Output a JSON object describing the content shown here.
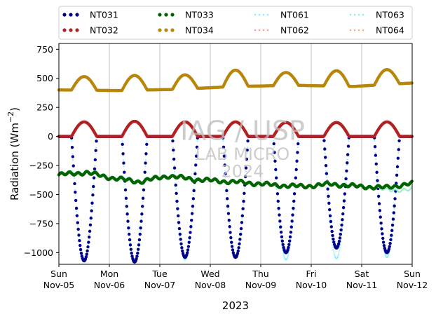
{
  "chart_data": {
    "type": "scatter",
    "ylabel": "Radiation (Wm⁻²)",
    "xlabel": "2023",
    "ylim": [
      -1100,
      800
    ],
    "xlim": [
      0,
      7
    ],
    "yticks": [
      750,
      500,
      250,
      0,
      -250,
      -500,
      -750,
      -1000
    ],
    "xticks": [
      {
        "x": 0,
        "day": "Sun",
        "date": "Nov-05"
      },
      {
        "x": 1,
        "day": "Mon",
        "date": "Nov-06"
      },
      {
        "x": 2,
        "day": "Tue",
        "date": "Nov-07"
      },
      {
        "x": 3,
        "day": "Wed",
        "date": "Nov-08"
      },
      {
        "x": 4,
        "day": "Thu",
        "date": "Nov-09"
      },
      {
        "x": 5,
        "day": "Fri",
        "date": "Nov-10"
      },
      {
        "x": 6,
        "day": "Sat",
        "date": "Nov-11"
      },
      {
        "x": 7,
        "day": "Sun",
        "date": "Nov-12"
      }
    ],
    "grid": "vertical",
    "legend_placement": "top, outside",
    "watermark": [
      "IAG / USP",
      "LAB MICRO",
      "2024"
    ],
    "series": [
      {
        "name": "NT031",
        "color": "#00008b",
        "style": "dots",
        "base": 0,
        "peaks": [
          -1070,
          -1080,
          -1040,
          -1040,
          -1000,
          -960,
          -1000
        ]
      },
      {
        "name": "NT032",
        "color": "#b22222",
        "style": "dots",
        "base": 0,
        "peaks": [
          125,
          130,
          125,
          125,
          120,
          120,
          125
        ]
      },
      {
        "name": "NT033",
        "color": "#006400",
        "style": "dots",
        "base": [
          -330,
          -310,
          -360,
          -390,
          -340,
          -370,
          -385,
          -400,
          -420,
          -430,
          -410,
          -430,
          -440,
          -405
        ],
        "peaks": [
          0,
          0,
          0,
          0,
          0,
          0,
          0
        ]
      },
      {
        "name": "NT034",
        "color": "#b8860b",
        "style": "dots",
        "base": [
          400,
          395,
          405,
          430,
          440,
          430,
          460
        ],
        "peaks": [
          515,
          525,
          530,
          570,
          550,
          565,
          575
        ]
      },
      {
        "name": "NT061",
        "color": "#87ecff",
        "style": "dotted",
        "base": 0,
        "peaks": [
          -1080,
          -1090,
          -1060,
          -1050,
          -1060,
          -1050,
          -1040
        ]
      },
      {
        "name": "NT062",
        "color": "#ff9999",
        "style": "dotted",
        "base": 0,
        "peaks": [
          130,
          135,
          130,
          130,
          125,
          125,
          130
        ]
      },
      {
        "name": "NT063",
        "color": "#98f0c8",
        "style": "dotted",
        "base": [
          -320,
          -300,
          -350,
          -380,
          -330,
          -360,
          -380,
          -395,
          -415,
          -425,
          -400,
          -420,
          -460,
          -460
        ],
        "peaks": [
          0,
          0,
          0,
          0,
          0,
          0,
          0
        ]
      },
      {
        "name": "NT064",
        "color": "#f4b183",
        "style": "dotted",
        "base": [
          395,
          390,
          400,
          425,
          435,
          425,
          455
        ],
        "peaks": [
          510,
          520,
          525,
          565,
          545,
          560,
          570
        ]
      }
    ]
  }
}
